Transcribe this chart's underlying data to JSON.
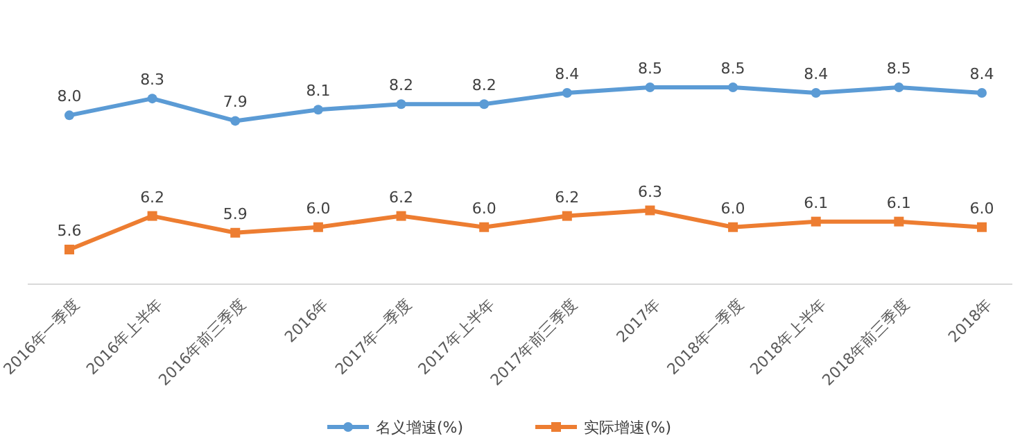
{
  "chart_data": {
    "type": "line",
    "categories": [
      "2016年一季度",
      "2016年上半年",
      "2016年前三季度",
      "2016年",
      "2017年一季度",
      "2017年上半年",
      "2017年前三季度",
      "2017年",
      "2018年一季度",
      "2018年上半年",
      "2018年前三季度",
      "2018年"
    ],
    "series": [
      {
        "name": "名义增速(%)",
        "color": "#5b9bd5",
        "marker": "circle",
        "values": [
          8.0,
          8.3,
          7.9,
          8.1,
          8.2,
          8.2,
          8.4,
          8.5,
          8.5,
          8.4,
          8.5,
          8.4
        ],
        "value_labels": [
          "8.0",
          "8.3",
          "7.9",
          "8.1",
          "8.2",
          "8.2",
          "8.4",
          "8.5",
          "8.5",
          "8.4",
          "8.5",
          "8.4"
        ]
      },
      {
        "name": "实际增速(%)",
        "color": "#ed7d31",
        "marker": "square",
        "values": [
          5.6,
          6.2,
          5.9,
          6.0,
          6.2,
          6.0,
          6.2,
          6.3,
          6.0,
          6.1,
          6.1,
          6.0
        ],
        "value_labels": [
          "5.6",
          "6.2",
          "5.9",
          "6.0",
          "6.2",
          "6.0",
          "6.2",
          "6.3",
          "6.0",
          "6.1",
          "6.1",
          "6.0"
        ]
      }
    ],
    "legend": "bottom",
    "grid": false
  }
}
